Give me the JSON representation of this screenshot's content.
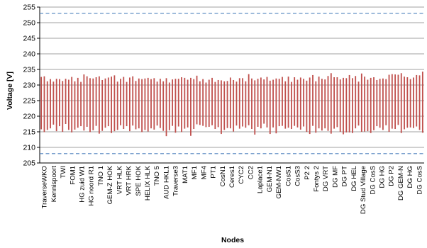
{
  "chart_data": {
    "type": "bar",
    "subtype": "range",
    "xlabel": "Nodes",
    "ylabel": "Voltage [V]",
    "ylim": [
      205,
      255
    ],
    "yticks": [
      205,
      210,
      215,
      220,
      225,
      230,
      235,
      240,
      245,
      250,
      255
    ],
    "grid": "horizontal",
    "reference_lines": [
      253,
      208
    ],
    "colors": {
      "bar": "#c0504d",
      "reference": "#4f81bd",
      "grid": "#808080",
      "axis": "#000000"
    },
    "x_tick_labels": [
      "TraverseWKO",
      "Kennispoort",
      "TWI",
      "FOM1",
      "HG zuid W1",
      "HG noord R1",
      "TNO 1",
      "GEM-Z HOK",
      "VRT HLK",
      "VRT HRK",
      "SPE HOK",
      "HELIX HLK",
      "TNO 5",
      "AUD HKL1",
      "Traverse3",
      "MAT1",
      "MF1",
      "MF4",
      "PT1",
      "CosN1",
      "Ceres1",
      "CYC2",
      "CC2",
      "Laplace1",
      "GEM-N1",
      "GEM-NW1",
      "CosS1",
      "CosS3",
      "P2 2",
      "Fontys 2",
      "DG VRT",
      "DG MF",
      "DG PT",
      "DG HEL",
      "DG Stud Village",
      "DG CosS",
      "DG HG",
      "DG P2",
      "DG GEM-N",
      "DG HG",
      "DG CosS"
    ],
    "ranges": [
      [
        215.8,
        232.6
      ],
      [
        214.9,
        232.8
      ],
      [
        215.6,
        231.2
      ],
      [
        216.1,
        231.9
      ],
      [
        217.3,
        231.1
      ],
      [
        215.2,
        232.0
      ],
      [
        216.8,
        231.9
      ],
      [
        215.0,
        231.3
      ],
      [
        217.5,
        232.0
      ],
      [
        215.6,
        231.7
      ],
      [
        214.8,
        232.6
      ],
      [
        215.7,
        231.2
      ],
      [
        216.3,
        232.3
      ],
      [
        216.8,
        231.0
      ],
      [
        215.4,
        233.4
      ],
      [
        216.6,
        232.8
      ],
      [
        214.9,
        232.2
      ],
      [
        215.5,
        232.1
      ],
      [
        216.9,
        232.5
      ],
      [
        214.4,
        232.8
      ],
      [
        215.3,
        231.6
      ],
      [
        216.3,
        232.1
      ],
      [
        216.8,
        232.4
      ],
      [
        214.6,
        232.7
      ],
      [
        215.2,
        233.1
      ],
      [
        215.6,
        231.1
      ],
      [
        217.1,
        232.0
      ],
      [
        215.9,
        232.6
      ],
      [
        216.8,
        231.0
      ],
      [
        215.2,
        232.4
      ],
      [
        217.0,
        232.8
      ],
      [
        215.8,
        231.3
      ],
      [
        216.1,
        232.1
      ],
      [
        214.9,
        231.9
      ],
      [
        215.6,
        232.1
      ],
      [
        215.1,
        232.3
      ],
      [
        216.1,
        231.9
      ],
      [
        215.7,
        232.2
      ],
      [
        217.0,
        231.1
      ],
      [
        216.2,
        232.0
      ],
      [
        215.3,
        231.2
      ],
      [
        213.6,
        232.2
      ],
      [
        215.5,
        230.8
      ],
      [
        216.9,
        231.8
      ],
      [
        214.7,
        232.0
      ],
      [
        216.7,
        232.0
      ],
      [
        214.9,
        232.5
      ],
      [
        216.0,
        232.3
      ],
      [
        216.4,
        231.7
      ],
      [
        213.7,
        232.3
      ],
      [
        215.9,
        231.9
      ],
      [
        217.4,
        233.0
      ],
      [
        217.2,
        231.2
      ],
      [
        216.9,
        231.9
      ],
      [
        216.5,
        230.8
      ],
      [
        216.6,
        231.7
      ],
      [
        217.1,
        232.3
      ],
      [
        215.9,
        231.0
      ],
      [
        216.5,
        231.6
      ],
      [
        214.3,
        231.5
      ],
      [
        215.6,
        231.2
      ],
      [
        216.2,
        231.3
      ],
      [
        216.1,
        232.4
      ],
      [
        215.1,
        231.6
      ],
      [
        217.0,
        231.1
      ],
      [
        216.0,
        232.2
      ],
      [
        216.7,
        232.2
      ],
      [
        216.3,
        231.2
      ],
      [
        217.1,
        233.5
      ],
      [
        215.9,
        232.1
      ],
      [
        214.1,
        231.5
      ],
      [
        216.6,
        232.0
      ],
      [
        216.1,
        232.4
      ],
      [
        217.6,
        231.8
      ],
      [
        216.4,
        232.6
      ],
      [
        214.3,
        231.4
      ],
      [
        216.4,
        231.7
      ],
      [
        214.5,
        232.1
      ],
      [
        216.8,
        232.0
      ],
      [
        216.9,
        232.6
      ],
      [
        216.0,
        231.2
      ],
      [
        216.3,
        232.7
      ],
      [
        215.9,
        231.0
      ],
      [
        216.9,
        232.5
      ],
      [
        216.4,
        231.7
      ],
      [
        215.7,
        232.4
      ],
      [
        216.7,
        232.0
      ],
      [
        215.0,
        231.4
      ],
      [
        214.3,
        232.4
      ],
      [
        216.9,
        233.2
      ],
      [
        214.7,
        231.2
      ],
      [
        216.1,
        232.7
      ],
      [
        215.4,
        232.0
      ],
      [
        216.1,
        231.8
      ],
      [
        215.3,
        232.9
      ],
      [
        214.4,
        233.8
      ],
      [
        216.0,
        232.5
      ],
      [
        216.5,
        232.5
      ],
      [
        215.0,
        231.8
      ],
      [
        214.2,
        232.3
      ],
      [
        214.8,
        232.2
      ],
      [
        214.8,
        233.2
      ],
      [
        214.6,
        232.2
      ],
      [
        216.1,
        232.9
      ],
      [
        217.0,
        231.1
      ],
      [
        215.0,
        233.7
      ],
      [
        215.1,
        232.7
      ],
      [
        215.2,
        231.7
      ],
      [
        214.6,
        232.3
      ],
      [
        215.5,
        232.5
      ],
      [
        216.8,
        231.6
      ],
      [
        216.3,
        232.0
      ],
      [
        215.6,
        232.1
      ],
      [
        217.1,
        231.9
      ],
      [
        215.0,
        233.3
      ],
      [
        216.0,
        233.5
      ],
      [
        215.9,
        233.4
      ],
      [
        217.2,
        233.3
      ],
      [
        214.6,
        233.8
      ],
      [
        215.8,
        232.7
      ],
      [
        216.3,
        232.5
      ],
      [
        216.4,
        231.9
      ],
      [
        216.2,
        232.4
      ],
      [
        216.7,
        233.2
      ],
      [
        215.6,
        233.1
      ],
      [
        214.7,
        234.3
      ]
    ]
  }
}
